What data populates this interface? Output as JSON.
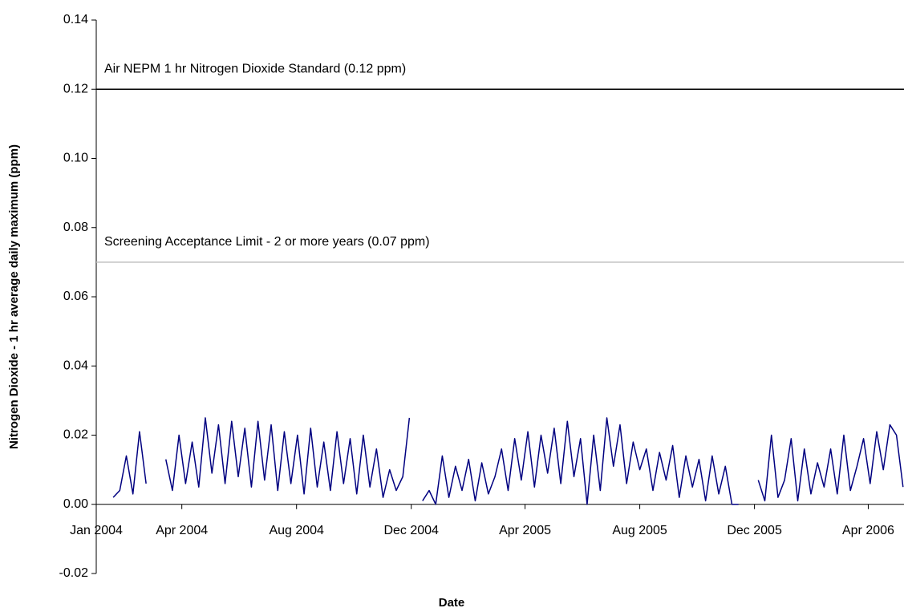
{
  "chart_data": {
    "type": "line",
    "xlabel": "Date",
    "ylabel": "Nitrogen Dioxide - 1 hr average daily maximum (ppm)",
    "xlim": [
      "2004-01-01",
      "2006-05-09"
    ],
    "xticks": [
      {
        "value": "2004-01-01",
        "label": "Jan 2004"
      },
      {
        "value": "2004-04-01",
        "label": "Apr 2004"
      },
      {
        "value": "2004-08-01",
        "label": "Aug 2004"
      },
      {
        "value": "2004-12-01",
        "label": "Dec 2004"
      },
      {
        "value": "2005-04-01",
        "label": "Apr 2005"
      },
      {
        "value": "2005-08-01",
        "label": "Aug 2005"
      },
      {
        "value": "2005-12-01",
        "label": "Dec 2005"
      },
      {
        "value": "2006-04-01",
        "label": "Apr 2006"
      }
    ],
    "ylim": [
      -0.02,
      0.14
    ],
    "yticks": [
      {
        "value": -0.02,
        "label": "-0.02"
      },
      {
        "value": 0,
        "label": "0.00"
      },
      {
        "value": 0.02,
        "label": "0.02"
      },
      {
        "value": 0.04,
        "label": "0.04"
      },
      {
        "value": 0.06,
        "label": "0.06"
      },
      {
        "value": 0.08,
        "label": "0.08"
      },
      {
        "value": 0.1,
        "label": "0.10"
      },
      {
        "value": 0.12,
        "label": "0.12"
      },
      {
        "value": 0.14,
        "label": "0.14"
      }
    ],
    "reference_lines": [
      {
        "value": 0.12,
        "label": "Air NEPM 1 hr Nitrogen Dioxide Standard (0.12 ppm)",
        "color": "#000000"
      },
      {
        "value": 0.07,
        "label": "Screening Acceptance Limit - 2 or more years (0.07 ppm)",
        "color": "#c0c0c0"
      }
    ],
    "x": [
      "2004-01-05",
      "2004-01-12",
      "2004-01-19",
      "2004-01-26",
      "2004-02-02",
      "2004-02-09",
      "2004-02-16",
      "2004-02-23",
      "2004-03-01",
      "2004-03-08",
      "2004-03-15",
      "2004-03-22",
      "2004-03-29",
      "2004-04-05",
      "2004-04-12",
      "2004-04-19",
      "2004-04-26",
      "2004-05-03",
      "2004-05-10",
      "2004-05-17",
      "2004-05-24",
      "2004-05-31",
      "2004-06-07",
      "2004-06-14",
      "2004-06-21",
      "2004-06-28",
      "2004-07-05",
      "2004-07-12",
      "2004-07-19",
      "2004-07-26",
      "2004-08-02",
      "2004-08-09",
      "2004-08-16",
      "2004-08-23",
      "2004-08-30",
      "2004-09-06",
      "2004-09-13",
      "2004-09-20",
      "2004-09-27",
      "2004-10-04",
      "2004-10-11",
      "2004-10-18",
      "2004-10-25",
      "2004-11-01",
      "2004-11-08",
      "2004-11-15",
      "2004-11-22",
      "2004-11-29",
      "2004-12-06",
      "2004-12-13",
      "2004-12-20",
      "2004-12-27",
      "2005-01-03",
      "2005-01-10",
      "2005-01-17",
      "2005-01-24",
      "2005-01-31",
      "2005-02-07",
      "2005-02-14",
      "2005-02-21",
      "2005-02-28",
      "2005-03-07",
      "2005-03-14",
      "2005-03-21",
      "2005-03-28",
      "2005-04-04",
      "2005-04-11",
      "2005-04-18",
      "2005-04-25",
      "2005-05-02",
      "2005-05-09",
      "2005-05-16",
      "2005-05-23",
      "2005-05-30",
      "2005-06-06",
      "2005-06-13",
      "2005-06-20",
      "2005-06-27",
      "2005-07-04",
      "2005-07-11",
      "2005-07-18",
      "2005-07-25",
      "2005-08-01",
      "2005-08-08",
      "2005-08-15",
      "2005-08-22",
      "2005-08-29",
      "2005-09-05",
      "2005-09-12",
      "2005-09-19",
      "2005-09-26",
      "2005-10-03",
      "2005-10-10",
      "2005-10-17",
      "2005-10-24",
      "2005-10-31",
      "2005-11-07",
      "2005-11-14",
      "2005-11-21",
      "2005-11-28",
      "2005-12-05",
      "2005-12-12",
      "2005-12-19",
      "2005-12-26",
      "2006-01-02",
      "2006-01-09",
      "2006-01-16",
      "2006-01-23",
      "2006-01-30",
      "2006-02-06",
      "2006-02-13",
      "2006-02-20",
      "2006-02-27",
      "2006-03-06",
      "2006-03-13",
      "2006-03-20",
      "2006-03-27",
      "2006-04-03",
      "2006-04-10",
      "2006-04-17",
      "2006-04-24",
      "2006-05-01",
      "2006-05-08"
    ],
    "series": [
      {
        "name": "Nitrogen Dioxide",
        "color": "#000080",
        "values": [
          0.002,
          null,
          0.002,
          0.004,
          0.014,
          0.003,
          0.021,
          0.006,
          null,
          null,
          0.013,
          0.004,
          0.02,
          0.006,
          0.018,
          0.005,
          0.025,
          0.009,
          0.023,
          0.006,
          0.024,
          0.008,
          0.022,
          0.005,
          0.024,
          0.007,
          0.023,
          0.004,
          0.021,
          0.006,
          0.02,
          0.003,
          0.022,
          0.005,
          0.018,
          0.004,
          0.021,
          0.006,
          0.019,
          0.003,
          0.02,
          0.005,
          0.016,
          0.002,
          0.01,
          0.004,
          0.008,
          0.025,
          null,
          0.001,
          0.004,
          0.0,
          0.014,
          0.002,
          0.011,
          0.004,
          0.013,
          0.001,
          0.012,
          0.003,
          0.008,
          0.016,
          0.004,
          0.019,
          0.007,
          0.021,
          0.005,
          0.02,
          0.009,
          0.022,
          0.006,
          0.024,
          0.008,
          0.019,
          0.0,
          0.02,
          0.004,
          0.025,
          0.011,
          0.023,
          0.006,
          0.018,
          0.01,
          0.016,
          0.004,
          0.015,
          0.007,
          0.017,
          0.002,
          0.014,
          0.005,
          0.013,
          0.001,
          0.014,
          0.003,
          0.011,
          0.0,
          0.0,
          null,
          null,
          0.007,
          0.001,
          0.02,
          0.002,
          0.007,
          0.019,
          0.001,
          0.016,
          0.003,
          0.012,
          0.005,
          0.016,
          0.003,
          0.02,
          0.004,
          0.011,
          0.019,
          0.006,
          0.021,
          0.01,
          0.023,
          0.02,
          0.005
        ]
      }
    ]
  }
}
